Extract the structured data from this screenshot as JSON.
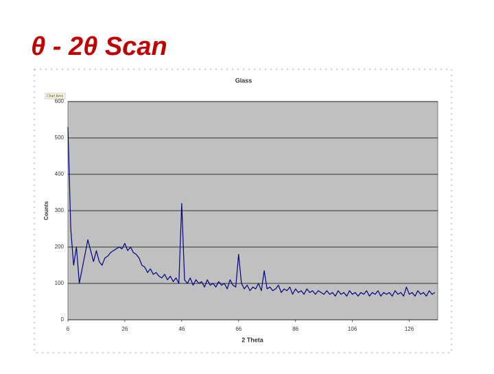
{
  "slide_title": "θ - 2θ Scan",
  "chart_data": {
    "type": "line",
    "title": "Glass",
    "x_label": "2 Theta",
    "y_label": "Counts",
    "tooltip": "Chart Area",
    "color": "#000080",
    "plot_background": "#c0c0c0",
    "grid": true,
    "xlim": [
      6,
      136
    ],
    "ylim": [
      0,
      600
    ],
    "xticks": [
      6,
      26,
      46,
      66,
      86,
      106,
      126
    ],
    "yticks": [
      0,
      100,
      200,
      300,
      400,
      500,
      600
    ],
    "x": [
      6,
      7,
      8,
      9,
      10,
      11,
      12,
      13,
      14,
      15,
      16,
      17,
      18,
      19,
      20,
      21,
      22,
      23,
      24,
      25,
      26,
      27,
      28,
      29,
      30,
      31,
      32,
      33,
      34,
      35,
      36,
      37,
      38,
      39,
      40,
      41,
      42,
      43,
      44,
      45,
      46,
      47,
      48,
      49,
      50,
      51,
      52,
      53,
      54,
      55,
      56,
      57,
      58,
      59,
      60,
      61,
      62,
      63,
      64,
      65,
      66,
      67,
      68,
      69,
      70,
      71,
      72,
      73,
      74,
      75,
      76,
      77,
      78,
      79,
      80,
      81,
      82,
      83,
      84,
      85,
      86,
      87,
      88,
      89,
      90,
      91,
      92,
      93,
      94,
      95,
      96,
      97,
      98,
      99,
      100,
      101,
      102,
      103,
      104,
      105,
      106,
      107,
      108,
      109,
      110,
      111,
      112,
      113,
      114,
      115,
      116,
      117,
      118,
      119,
      120,
      121,
      122,
      123,
      124,
      125,
      126,
      127,
      128,
      129,
      130,
      131,
      132,
      133,
      134,
      135
    ],
    "values": [
      530,
      250,
      150,
      200,
      100,
      140,
      180,
      220,
      190,
      160,
      190,
      160,
      150,
      170,
      175,
      185,
      190,
      195,
      200,
      195,
      210,
      190,
      200,
      185,
      180,
      170,
      150,
      145,
      130,
      140,
      125,
      130,
      120,
      115,
      125,
      110,
      120,
      105,
      115,
      100,
      320,
      110,
      100,
      115,
      95,
      110,
      100,
      105,
      90,
      110,
      95,
      100,
      90,
      105,
      95,
      100,
      85,
      110,
      95,
      90,
      180,
      100,
      85,
      95,
      80,
      90,
      85,
      100,
      80,
      135,
      85,
      90,
      80,
      85,
      95,
      75,
      85,
      80,
      90,
      70,
      85,
      75,
      80,
      70,
      85,
      75,
      80,
      70,
      80,
      75,
      70,
      80,
      70,
      75,
      65,
      80,
      70,
      75,
      65,
      80,
      70,
      75,
      65,
      75,
      70,
      80,
      65,
      75,
      70,
      80,
      65,
      75,
      70,
      75,
      65,
      80,
      70,
      75,
      65,
      90,
      70,
      75,
      65,
      80,
      70,
      75,
      65,
      80,
      70,
      75
    ]
  }
}
